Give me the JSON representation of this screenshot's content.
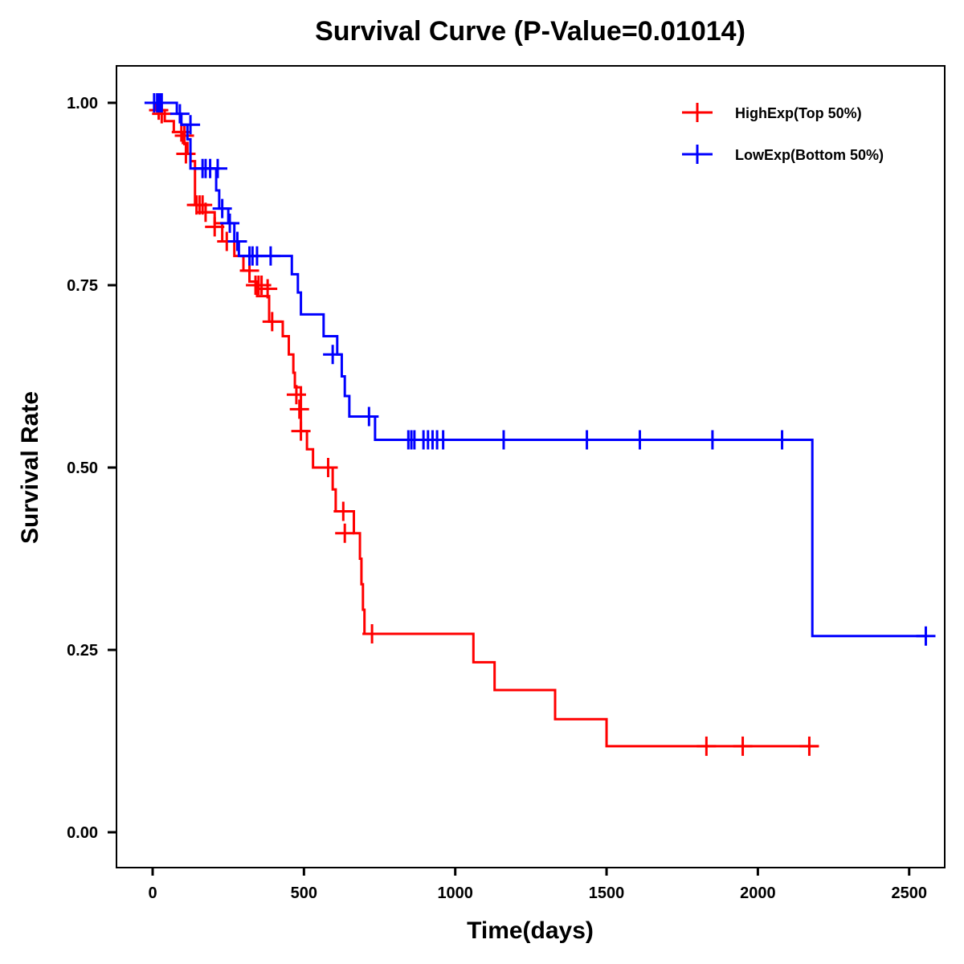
{
  "chart_data": {
    "type": "line",
    "subtype": "kaplan-meier-step",
    "title": "Survival Curve (P-Value=0.01014)",
    "xlabel": "Time(days)",
    "ylabel": "Survival Rate",
    "xlim": [
      -115,
      2620
    ],
    "ylim": [
      -0.05,
      1.05
    ],
    "xticks": [
      0,
      500,
      1000,
      1500,
      2000,
      2500
    ],
    "xtick_labels": [
      "0",
      "500",
      "1000",
      "1500",
      "2000",
      "2500"
    ],
    "yticks": [
      0.0,
      0.25,
      0.5,
      0.75,
      1.0
    ],
    "ytick_labels": [
      "0.00",
      "0.25",
      "0.50",
      "0.75",
      "1.00"
    ],
    "grid": false,
    "legend_position": "top-right",
    "series": [
      {
        "name": "HighExp(Top 50%)",
        "color": "#ff0000",
        "steps": [
          [
            0,
            1.0
          ],
          [
            10,
            0.99
          ],
          [
            40,
            0.975
          ],
          [
            70,
            0.96
          ],
          [
            100,
            0.945
          ],
          [
            115,
            0.93
          ],
          [
            125,
            0.92
          ],
          [
            140,
            0.86
          ],
          [
            175,
            0.85
          ],
          [
            205,
            0.835
          ],
          [
            230,
            0.81
          ],
          [
            270,
            0.79
          ],
          [
            300,
            0.77
          ],
          [
            320,
            0.755
          ],
          [
            345,
            0.735
          ],
          [
            385,
            0.7
          ],
          [
            430,
            0.68
          ],
          [
            450,
            0.655
          ],
          [
            465,
            0.63
          ],
          [
            470,
            0.61
          ],
          [
            490,
            0.55
          ],
          [
            510,
            0.525
          ],
          [
            530,
            0.5
          ],
          [
            595,
            0.47
          ],
          [
            605,
            0.44
          ],
          [
            665,
            0.41
          ],
          [
            685,
            0.375
          ],
          [
            690,
            0.34
          ],
          [
            695,
            0.305
          ],
          [
            700,
            0.272
          ],
          [
            1060,
            0.233
          ],
          [
            1130,
            0.195
          ],
          [
            1330,
            0.155
          ],
          [
            1500,
            0.118
          ]
        ],
        "end_time": 2200,
        "censored": [
          [
            20,
            0.99
          ],
          [
            30,
            0.985
          ],
          [
            95,
            0.96
          ],
          [
            105,
            0.955
          ],
          [
            110,
            0.93
          ],
          [
            145,
            0.86
          ],
          [
            155,
            0.86
          ],
          [
            165,
            0.86
          ],
          [
            175,
            0.85
          ],
          [
            205,
            0.83
          ],
          [
            245,
            0.81
          ],
          [
            320,
            0.77
          ],
          [
            340,
            0.75
          ],
          [
            350,
            0.75
          ],
          [
            360,
            0.75
          ],
          [
            380,
            0.745
          ],
          [
            395,
            0.7
          ],
          [
            475,
            0.6
          ],
          [
            485,
            0.58
          ],
          [
            490,
            0.55
          ],
          [
            580,
            0.5
          ],
          [
            630,
            0.44
          ],
          [
            635,
            0.41
          ],
          [
            725,
            0.272
          ],
          [
            1830,
            0.118
          ],
          [
            1950,
            0.118
          ],
          [
            2170,
            0.118
          ]
        ]
      },
      {
        "name": "LowExp(Bottom 50%)",
        "color": "#0000ff",
        "steps": [
          [
            0,
            1.0
          ],
          [
            80,
            0.985
          ],
          [
            95,
            0.97
          ],
          [
            115,
            0.95
          ],
          [
            125,
            0.91
          ],
          [
            210,
            0.88
          ],
          [
            220,
            0.855
          ],
          [
            250,
            0.835
          ],
          [
            270,
            0.81
          ],
          [
            285,
            0.79
          ],
          [
            460,
            0.765
          ],
          [
            480,
            0.74
          ],
          [
            490,
            0.71
          ],
          [
            565,
            0.68
          ],
          [
            610,
            0.655
          ],
          [
            625,
            0.625
          ],
          [
            635,
            0.598
          ],
          [
            650,
            0.57
          ],
          [
            735,
            0.538
          ],
          [
            2180,
            0.269
          ]
        ],
        "end_time": 2555,
        "censored": [
          [
            5,
            1.0
          ],
          [
            15,
            1.0
          ],
          [
            20,
            1.0
          ],
          [
            25,
            1.0
          ],
          [
            30,
            1.0
          ],
          [
            90,
            0.985
          ],
          [
            125,
            0.97
          ],
          [
            165,
            0.91
          ],
          [
            175,
            0.91
          ],
          [
            190,
            0.91
          ],
          [
            215,
            0.91
          ],
          [
            230,
            0.855
          ],
          [
            255,
            0.835
          ],
          [
            280,
            0.81
          ],
          [
            320,
            0.79
          ],
          [
            330,
            0.79
          ],
          [
            345,
            0.79
          ],
          [
            390,
            0.79
          ],
          [
            595,
            0.655
          ],
          [
            715,
            0.57
          ],
          [
            845,
            0.538
          ],
          [
            855,
            0.538
          ],
          [
            865,
            0.538
          ],
          [
            895,
            0.538
          ],
          [
            910,
            0.538
          ],
          [
            925,
            0.538
          ],
          [
            940,
            0.538
          ],
          [
            960,
            0.538
          ],
          [
            1160,
            0.538
          ],
          [
            1435,
            0.538
          ],
          [
            1610,
            0.538
          ],
          [
            1850,
            0.538
          ],
          [
            2080,
            0.538
          ],
          [
            2555,
            0.269
          ]
        ]
      }
    ]
  }
}
